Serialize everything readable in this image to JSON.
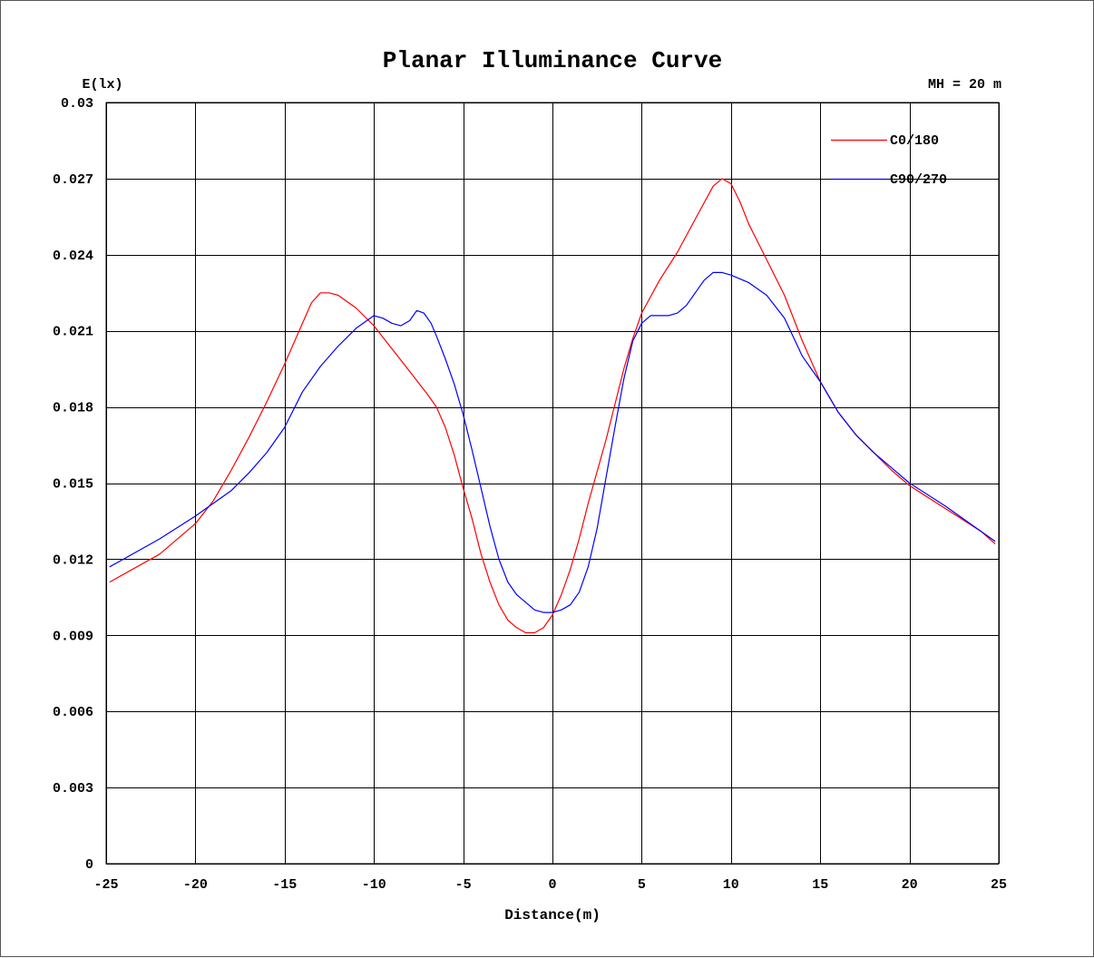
{
  "chart_data": {
    "type": "line",
    "title": "Planar Illuminance Curve",
    "ylabel": "E(lx)",
    "xlabel": "Distance(m)",
    "annotation": "MH = 20 m",
    "xlim": [
      -25,
      25
    ],
    "ylim": [
      0,
      0.03
    ],
    "x_ticks": [
      -25,
      -20,
      -15,
      -10,
      -5,
      0,
      5,
      10,
      15,
      20,
      25
    ],
    "y_ticks": [
      0,
      0.003,
      0.006,
      0.009,
      0.012,
      0.015,
      0.018,
      0.021,
      0.024,
      0.027,
      0.03
    ],
    "x_tick_labels": [
      "-25",
      "-20",
      "-15",
      "-10",
      "-5",
      "0",
      "5",
      "10",
      "15",
      "20",
      "25"
    ],
    "y_tick_labels": [
      "0",
      "0.003",
      "0.006",
      "0.009",
      "0.012",
      "0.015",
      "0.018",
      "0.021",
      "0.024",
      "0.027",
      "0.03"
    ],
    "grid": true,
    "legend_position": "top-right",
    "series": [
      {
        "name": "C0/180",
        "color": "#ff0000",
        "points": [
          [
            -24.8,
            0.0111
          ],
          [
            -22,
            0.0122
          ],
          [
            -20,
            0.0134
          ],
          [
            -19,
            0.0143
          ],
          [
            -18,
            0.0155
          ],
          [
            -17,
            0.0168
          ],
          [
            -16,
            0.0182
          ],
          [
            -15,
            0.0197
          ],
          [
            -14,
            0.0213
          ],
          [
            -13.5,
            0.0221
          ],
          [
            -13,
            0.0225
          ],
          [
            -12.5,
            0.0225
          ],
          [
            -12,
            0.0224
          ],
          [
            -11,
            0.0219
          ],
          [
            -10,
            0.0212
          ],
          [
            -9,
            0.0203
          ],
          [
            -8,
            0.0194
          ],
          [
            -7,
            0.0185
          ],
          [
            -6.5,
            0.018
          ],
          [
            -6,
            0.0172
          ],
          [
            -5.5,
            0.0161
          ],
          [
            -5,
            0.0148
          ],
          [
            -4.5,
            0.0136
          ],
          [
            -4,
            0.0122
          ],
          [
            -3.5,
            0.0111
          ],
          [
            -3,
            0.0102
          ],
          [
            -2.5,
            0.0096
          ],
          [
            -2,
            0.0093
          ],
          [
            -1.5,
            0.0091
          ],
          [
            -1,
            0.0091
          ],
          [
            -0.5,
            0.0093
          ],
          [
            0,
            0.0098
          ],
          [
            0.5,
            0.0106
          ],
          [
            1,
            0.0116
          ],
          [
            1.5,
            0.0128
          ],
          [
            2,
            0.0142
          ],
          [
            3,
            0.0167
          ],
          [
            4,
            0.0195
          ],
          [
            4.5,
            0.0207
          ],
          [
            5,
            0.0217
          ],
          [
            6,
            0.023
          ],
          [
            7,
            0.0241
          ],
          [
            8,
            0.0254
          ],
          [
            9,
            0.0267
          ],
          [
            9.5,
            0.027
          ],
          [
            10,
            0.0268
          ],
          [
            10.5,
            0.0261
          ],
          [
            11,
            0.0252
          ],
          [
            12,
            0.0238
          ],
          [
            13,
            0.0224
          ],
          [
            14,
            0.0206
          ],
          [
            15,
            0.019
          ],
          [
            16,
            0.0178
          ],
          [
            17,
            0.0169
          ],
          [
            18,
            0.0162
          ],
          [
            19,
            0.0155
          ],
          [
            20,
            0.0149
          ],
          [
            22,
            0.014
          ],
          [
            24,
            0.0131
          ],
          [
            24.8,
            0.0126
          ]
        ]
      },
      {
        "name": "C90/270",
        "color": "#0000ff",
        "points": [
          [
            -24.8,
            0.0117
          ],
          [
            -22,
            0.0128
          ],
          [
            -20,
            0.0137
          ],
          [
            -18,
            0.0147
          ],
          [
            -17,
            0.0154
          ],
          [
            -16,
            0.0162
          ],
          [
            -15,
            0.0172
          ],
          [
            -14,
            0.0186
          ],
          [
            -13,
            0.0196
          ],
          [
            -12,
            0.0204
          ],
          [
            -11,
            0.0211
          ],
          [
            -10,
            0.0216
          ],
          [
            -9.5,
            0.0215
          ],
          [
            -9,
            0.0213
          ],
          [
            -8.5,
            0.0212
          ],
          [
            -8,
            0.0214
          ],
          [
            -7.6,
            0.0218
          ],
          [
            -7.2,
            0.0217
          ],
          [
            -6.8,
            0.0213
          ],
          [
            -6.5,
            0.0208
          ],
          [
            -6,
            0.0199
          ],
          [
            -5.5,
            0.0189
          ],
          [
            -5,
            0.0177
          ],
          [
            -4.5,
            0.0163
          ],
          [
            -4,
            0.0148
          ],
          [
            -3.5,
            0.0133
          ],
          [
            -3,
            0.012
          ],
          [
            -2.5,
            0.0111
          ],
          [
            -2,
            0.0106
          ],
          [
            -1.5,
            0.0103
          ],
          [
            -1,
            0.01
          ],
          [
            -0.5,
            0.0099
          ],
          [
            0,
            0.0099
          ],
          [
            0.5,
            0.01
          ],
          [
            1,
            0.0102
          ],
          [
            1.5,
            0.0107
          ],
          [
            2,
            0.0117
          ],
          [
            2.5,
            0.0132
          ],
          [
            3,
            0.0152
          ],
          [
            3.5,
            0.0172
          ],
          [
            4,
            0.0191
          ],
          [
            4.5,
            0.0206
          ],
          [
            5,
            0.0213
          ],
          [
            5.5,
            0.0216
          ],
          [
            6.5,
            0.0216
          ],
          [
            7,
            0.0217
          ],
          [
            7.5,
            0.022
          ],
          [
            8,
            0.0225
          ],
          [
            8.5,
            0.023
          ],
          [
            9,
            0.0233
          ],
          [
            9.5,
            0.0233
          ],
          [
            10,
            0.0232
          ],
          [
            11,
            0.0229
          ],
          [
            12,
            0.0224
          ],
          [
            13,
            0.0215
          ],
          [
            14,
            0.02
          ],
          [
            15,
            0.019
          ],
          [
            16,
            0.0178
          ],
          [
            17,
            0.0169
          ],
          [
            18,
            0.0162
          ],
          [
            19,
            0.0156
          ],
          [
            20,
            0.015
          ],
          [
            22,
            0.0141
          ],
          [
            24,
            0.0131
          ],
          [
            24.8,
            0.0127
          ]
        ]
      }
    ]
  }
}
